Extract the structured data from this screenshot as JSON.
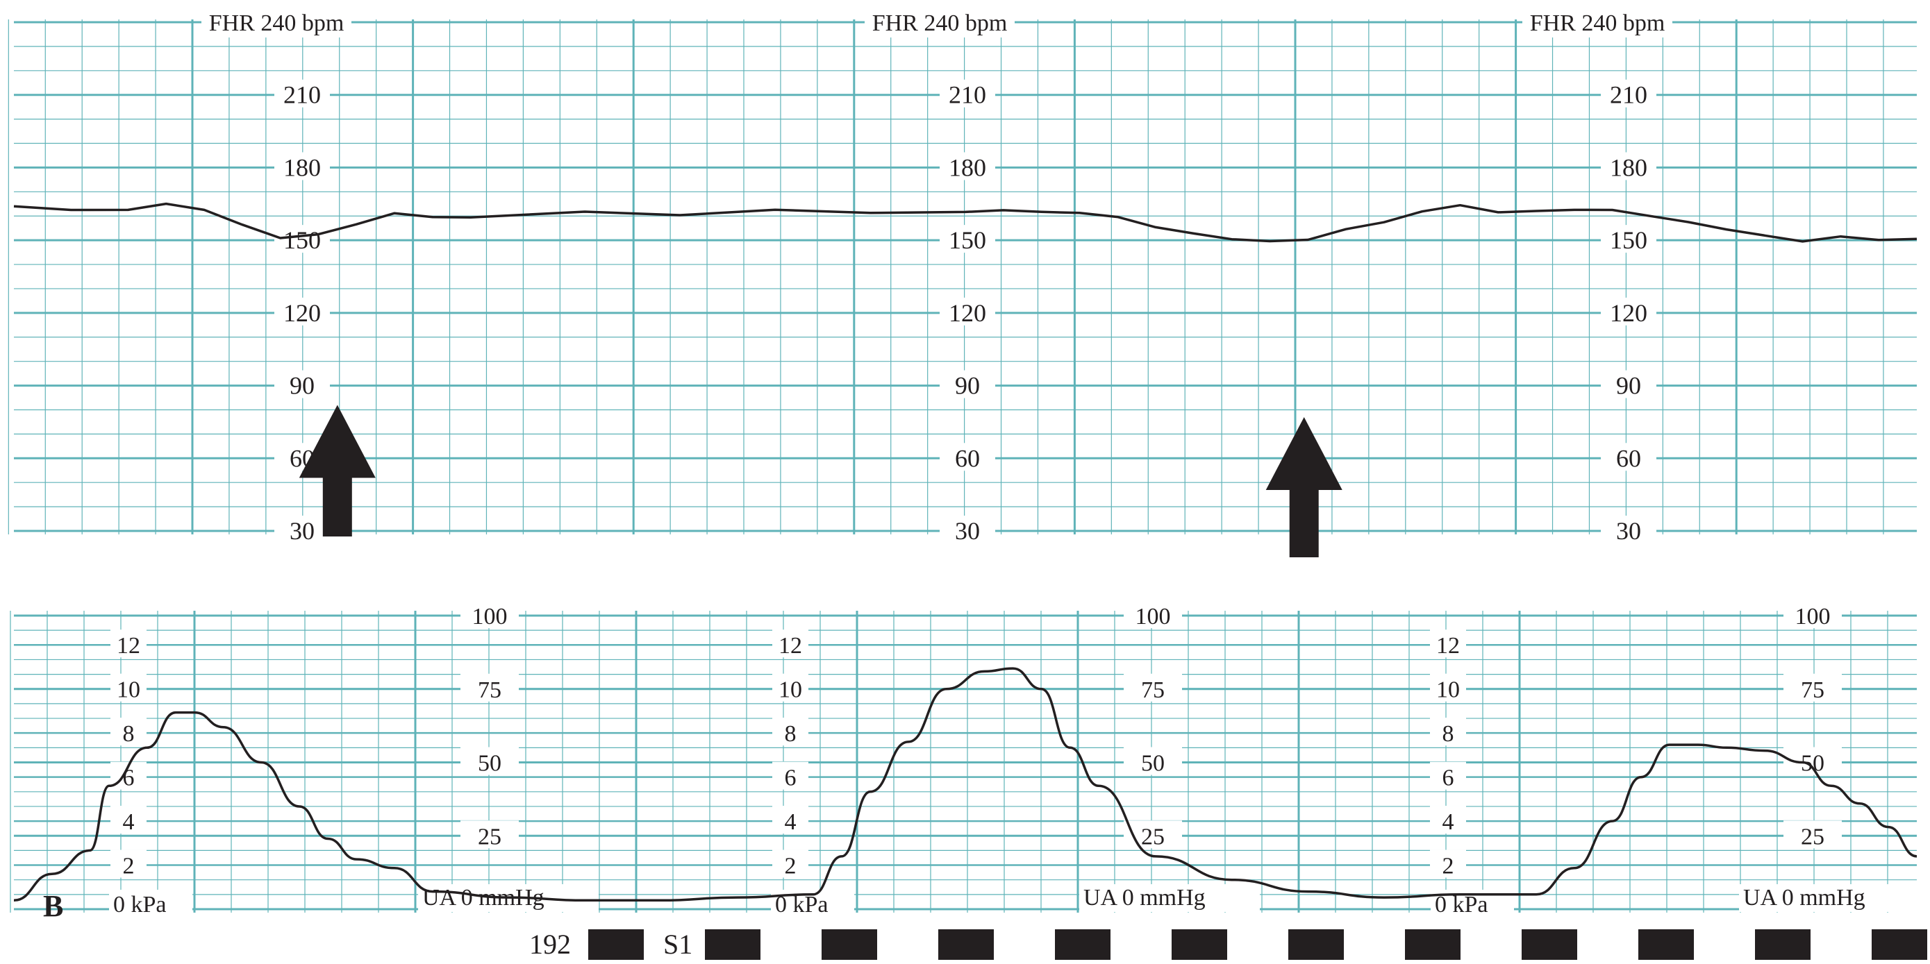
{
  "panel_label": "B",
  "chart_data": [
    {
      "type": "line",
      "name": "fetal-heart-rate-trace",
      "title": "FHR 240 bpm",
      "title_repeats": 3,
      "ylim": [
        30,
        240
      ],
      "y_ticks": [
        210,
        180,
        150,
        120,
        90,
        60,
        30
      ],
      "y_tick_label_columns": 3,
      "grid": true,
      "grid_color": "#5fb3b8",
      "trace_color": "#231f20",
      "x": [
        0,
        0.03,
        0.06,
        0.08,
        0.1,
        0.12,
        0.14,
        0.16,
        0.18,
        0.2,
        0.22,
        0.24,
        0.3,
        0.35,
        0.4,
        0.45,
        0.5,
        0.52,
        0.54,
        0.56,
        0.58,
        0.6,
        0.62,
        0.64,
        0.66,
        0.68,
        0.7,
        0.72,
        0.74,
        0.76,
        0.78,
        0.8,
        0.82,
        0.84,
        0.86,
        0.88,
        0.9,
        0.92,
        0.94,
        0.96,
        0.98,
        1.0
      ],
      "values": [
        164,
        162,
        162,
        165,
        163,
        157,
        151,
        152,
        156,
        161,
        160,
        160,
        162,
        160,
        162,
        161,
        162,
        163,
        162,
        161,
        159,
        155,
        153,
        151,
        150,
        150,
        154,
        157,
        162,
        165,
        162,
        162,
        162,
        162,
        160,
        158,
        155,
        152,
        149,
        151,
        150,
        151
      ],
      "annotations": [
        {
          "type": "arrow-up",
          "x": 0.17,
          "y_tip": 82,
          "y_base": 30
        },
        {
          "type": "arrow-up",
          "x": 0.678,
          "y_tip": 77,
          "y_base": 30
        }
      ]
    },
    {
      "type": "line",
      "name": "uterine-activity-trace",
      "ylim": [
        0,
        100
      ],
      "mmhg_ticks": [
        100,
        75,
        50,
        25
      ],
      "mmhg_zero_label": "UA   0    mmHg",
      "kpa_ticks": [
        12,
        10,
        8,
        6,
        4,
        2
      ],
      "kpa_zero_label": "0 kPa",
      "label_repeats": 3,
      "grid": true,
      "grid_color": "#5fb3b8",
      "trace_color": "#231f20",
      "x": [
        0,
        0.02,
        0.04,
        0.05,
        0.07,
        0.085,
        0.095,
        0.11,
        0.13,
        0.15,
        0.165,
        0.18,
        0.2,
        0.22,
        0.26,
        0.3,
        0.34,
        0.38,
        0.42,
        0.435,
        0.45,
        0.47,
        0.49,
        0.51,
        0.525,
        0.54,
        0.555,
        0.57,
        0.6,
        0.64,
        0.68,
        0.72,
        0.76,
        0.78,
        0.8,
        0.82,
        0.84,
        0.855,
        0.87,
        0.885,
        0.9,
        0.92,
        0.94,
        0.955,
        0.97,
        0.985,
        1.0
      ],
      "values": [
        3,
        12,
        20,
        42,
        55,
        67,
        67,
        62,
        50,
        35,
        24,
        17,
        14,
        6,
        4,
        3,
        3,
        4,
        5,
        18,
        40,
        57,
        75,
        81,
        82,
        75,
        55,
        42,
        18,
        10,
        6,
        4,
        5,
        5,
        5,
        14,
        30,
        45,
        56,
        56,
        55,
        54,
        50,
        42,
        36,
        28,
        18
      ]
    }
  ],
  "bottom_strip": {
    "page_number": "192",
    "marker_label": "S1",
    "marker_count": 12
  }
}
